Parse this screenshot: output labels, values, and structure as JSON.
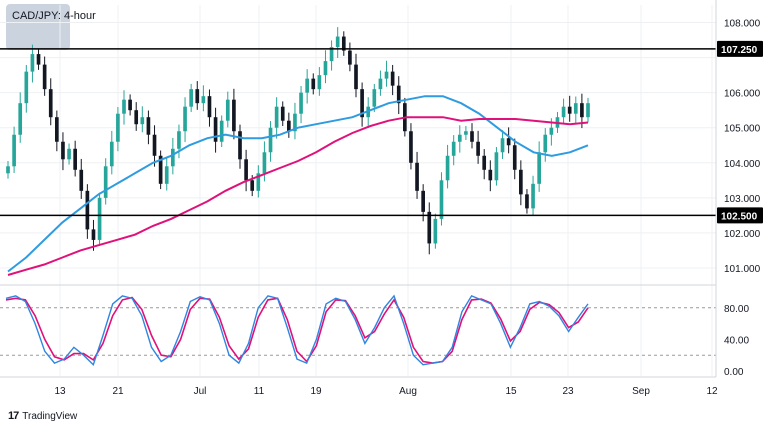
{
  "header": {
    "title": "CAD/JPY: 4-hour"
  },
  "footer": {
    "brand": "TradingView",
    "logo_text": "17"
  },
  "colors": {
    "up_candle": "#26a69a",
    "down_candle": "#131722",
    "sma100": "#2f9be0",
    "sma200": "#e0117a",
    "stoch_k": "#2f86e0",
    "stoch_d": "#e0117a",
    "level_line": "#000000"
  },
  "chart_data": [
    {
      "type": "candlestick",
      "title": "CAD/JPY: 4-hour",
      "x_ticks": [
        "13",
        "21",
        "Jul",
        "11",
        "19",
        "Aug",
        "15",
        "23",
        "Sep",
        "12"
      ],
      "y_ticks": [
        "108.000",
        "107.000",
        "106.000",
        "105.000",
        "104.000",
        "103.000",
        "102.000",
        "101.000"
      ],
      "ylim": [
        100.6,
        108.5
      ],
      "horizontal_levels": [
        {
          "value": 107.25,
          "label": "107.250"
        },
        {
          "value": 102.5,
          "label": "102.500"
        }
      ],
      "series": [
        {
          "name": "price_close",
          "values": [
            103.9,
            104.8,
            105.7,
            106.6,
            107.1,
            106.8,
            106.1,
            105.3,
            104.6,
            104.1,
            104.4,
            103.8,
            103.2,
            102.1,
            101.8,
            103.0,
            103.9,
            104.6,
            105.4,
            105.8,
            105.5,
            105.1,
            105.3,
            104.8,
            104.2,
            103.4,
            103.9,
            104.4,
            104.9,
            105.6,
            106.1,
            105.7,
            105.9,
            105.3,
            104.6,
            105.2,
            105.8,
            104.9,
            104.1,
            103.5,
            103.2,
            103.7,
            104.3,
            105.0,
            105.6,
            105.2,
            104.9,
            105.4,
            106.0,
            106.4,
            106.1,
            106.5,
            106.9,
            107.3,
            107.6,
            107.2,
            106.8,
            106.1,
            105.3,
            105.6,
            106.1,
            106.4,
            106.6,
            106.2,
            105.7,
            104.9,
            104.0,
            103.2,
            102.6,
            101.7,
            102.4,
            103.5,
            104.2,
            104.6,
            104.8,
            104.9,
            104.6,
            104.2,
            103.8,
            103.5,
            104.3,
            104.7,
            104.5,
            103.8,
            103.1,
            102.7,
            103.4,
            104.3,
            104.8,
            105.0,
            105.3,
            105.6,
            105.4,
            105.7,
            105.3,
            105.7
          ]
        },
        {
          "name": "sma_100",
          "values": [
            100.9,
            101.3,
            101.8,
            102.3,
            102.7,
            103.1,
            103.4,
            103.7,
            104.0,
            104.2,
            104.5,
            104.7,
            104.8,
            104.7,
            104.7,
            104.8,
            105.0,
            105.1,
            105.2,
            105.3,
            105.5,
            105.7,
            105.8,
            105.9,
            105.9,
            105.7,
            105.4,
            105.0,
            104.6,
            104.3,
            104.2,
            104.3,
            104.5
          ]
        },
        {
          "name": "sma_200",
          "values": [
            100.8,
            100.95,
            101.1,
            101.3,
            101.5,
            101.65,
            101.8,
            101.95,
            102.2,
            102.4,
            102.65,
            102.9,
            103.2,
            103.45,
            103.65,
            103.85,
            104.05,
            104.3,
            104.6,
            104.85,
            105.05,
            105.2,
            105.3,
            105.3,
            105.3,
            105.2,
            105.25,
            105.25,
            105.25,
            105.2,
            105.15,
            105.1,
            105.15
          ]
        }
      ]
    },
    {
      "type": "line",
      "title": "",
      "y_ticks": [
        "80.00",
        "40.00",
        "0.00"
      ],
      "ylim": [
        0,
        100
      ],
      "reference_levels": [
        80,
        20
      ],
      "series": [
        {
          "name": "stoch_k",
          "values": [
            92,
            95,
            88,
            60,
            25,
            10,
            15,
            30,
            20,
            8,
            45,
            85,
            95,
            92,
            70,
            30,
            12,
            20,
            50,
            88,
            94,
            90,
            60,
            20,
            10,
            35,
            80,
            95,
            92,
            55,
            15,
            10,
            40,
            85,
            92,
            88,
            65,
            35,
            55,
            80,
            95,
            60,
            20,
            8,
            10,
            12,
            30,
            75,
            95,
            90,
            85,
            60,
            30,
            55,
            85,
            88,
            82,
            70,
            50,
            68,
            85
          ]
        },
        {
          "name": "stoch_d",
          "values": [
            90,
            92,
            90,
            70,
            40,
            18,
            14,
            22,
            22,
            14,
            35,
            70,
            90,
            93,
            78,
            45,
            20,
            18,
            40,
            78,
            92,
            91,
            68,
            32,
            15,
            28,
            68,
            90,
            92,
            65,
            25,
            12,
            32,
            75,
            90,
            89,
            70,
            42,
            50,
            72,
            90,
            68,
            30,
            12,
            10,
            12,
            25,
            65,
            90,
            91,
            86,
            66,
            38,
            50,
            78,
            87,
            84,
            74,
            55,
            62,
            80
          ]
        }
      ]
    }
  ]
}
